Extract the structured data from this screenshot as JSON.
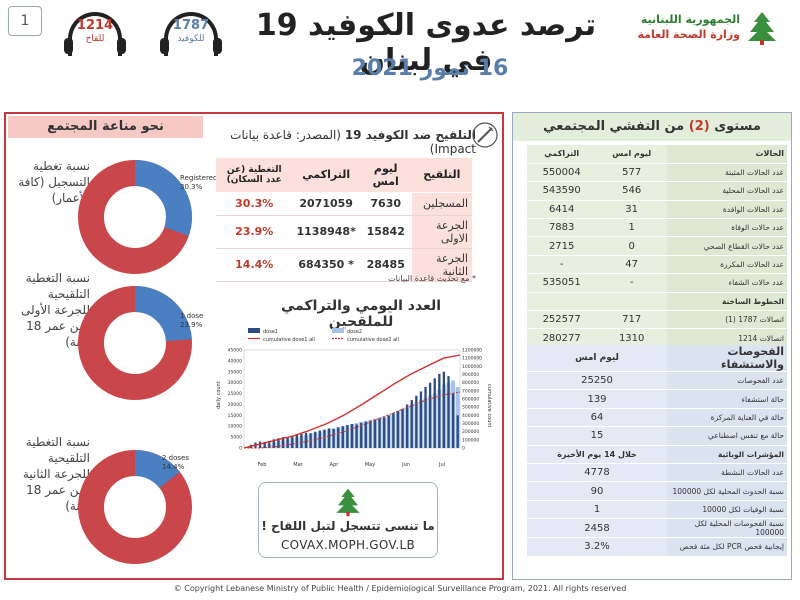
{
  "page_number": "1",
  "header": {
    "title": "ترصد عدوى الكوفيد 19 في لبنان",
    "date": "16 تموز 2021",
    "ministry_line1": "الجمهورية اللبنانية",
    "ministry_line2": "وزارة الصحة العامة",
    "hotline_covid": {
      "number": "1787",
      "label": "للكوفيد"
    },
    "hotline_vaccine": {
      "number": "1214",
      "label": "للقاح"
    }
  },
  "community_immunity": {
    "title": "نحو مناعة المجتمع",
    "donuts": [
      {
        "label": "نسبة تغطية التسجيل (كافة الأعمار)",
        "caption_line1": "Registered",
        "caption_line2": "30.3%",
        "value": 0.303
      },
      {
        "label": "نسبة التغطية التلقيحية للجرعة الأولى (من عمر 18 سنة)",
        "caption_line1": "1 dose",
        "caption_line2": "23.9%",
        "value": 0.239
      },
      {
        "label": "نسبة التغطية التلقيحية للجرعة الثانية (من عمر 18 سنة)",
        "caption_line1": "2 doses",
        "caption_line2": "14.4%",
        "value": 0.144
      }
    ],
    "colors": {
      "filled": "#4a7fc1",
      "remaining": "#c9474a"
    }
  },
  "vaccination": {
    "title_bold": "التلقيح ضد الكوفيد 19",
    "title_rest": "(المصدر: قاعدة بيانات Impact)",
    "columns": [
      "التلقيح",
      "ليوم امس",
      "التراكمي",
      "التغطية (عن عدد السكان)"
    ],
    "rows": [
      {
        "label": "المسجلين",
        "yesterday": "7630",
        "cumulative": "2071059",
        "coverage": "30.3%"
      },
      {
        "label": "الجرعة الاولى",
        "yesterday": "15842",
        "cumulative": "*1138948",
        "coverage": "23.9%"
      },
      {
        "label": "الجرعة الثانية",
        "yesterday": "28485",
        "cumulative": "* 684350",
        "coverage": "14.4%"
      }
    ],
    "note": "* مع تحديث قاعدة البيانات",
    "chart_title": "العدد اليومي والتراكمي للملقحين"
  },
  "chart_data": {
    "type": "bar",
    "legend": [
      "dose1",
      "dose2",
      "cumulative dose1 all",
      "cumulative dose2 all"
    ],
    "ylabel": "daily count",
    "y2label": "cumulative count",
    "x_months": [
      "Feb",
      "Mar",
      "Apr",
      "May",
      "Jun",
      "Jul"
    ],
    "y_ticks": [
      "0",
      "5000",
      "10000",
      "15000",
      "20000",
      "25000",
      "30000",
      "35000",
      "40000",
      "45000"
    ],
    "y2_ticks": [
      "0",
      "100000",
      "200000",
      "300000",
      "400000",
      "500000",
      "600000",
      "700000",
      "800000",
      "900000",
      "1000000",
      "1100000",
      "1200000"
    ],
    "ylim": [
      0,
      45000
    ],
    "y2lim": [
      0,
      1200000
    ],
    "dose1": [
      500,
      1500,
      2500,
      3000,
      2800,
      3200,
      4000,
      4500,
      5000,
      4800,
      5500,
      6000,
      6500,
      7000,
      6800,
      7500,
      8000,
      8500,
      9000,
      8800,
      9500,
      10000,
      10500,
      11000,
      10800,
      11500,
      12000,
      12500,
      13000,
      13500,
      14000,
      15000,
      16000,
      17000,
      18000,
      20000,
      22000,
      24000,
      26000,
      28000,
      30000,
      32000,
      34000,
      35000,
      33000,
      25000,
      15000
    ],
    "dose2": [
      0,
      0,
      0,
      0,
      500,
      1500,
      2500,
      3000,
      3500,
      4000,
      4500,
      5000,
      5500,
      6000,
      6500,
      7000,
      7500,
      8000,
      8500,
      9000,
      9500,
      10000,
      10500,
      11000,
      11500,
      12000,
      12500,
      13000,
      13500,
      14000,
      14500,
      15000,
      16000,
      17000,
      18000,
      19000,
      20000,
      21000,
      22000,
      23000,
      24000,
      25000,
      27000,
      29000,
      30000,
      31000,
      28000
    ],
    "cum_dose1": [
      0,
      50000,
      100000,
      150000,
      220000,
      300000,
      400000,
      520000,
      650000,
      780000,
      900000,
      1000000,
      1100000,
      1138948
    ],
    "cum_dose2": [
      0,
      0,
      20000,
      50000,
      90000,
      140000,
      200000,
      270000,
      350000,
      430000,
      510000,
      590000,
      650000,
      684350
    ],
    "colors": {
      "dose1": "#2f4c80",
      "dose2": "#a8c2e6",
      "cum1": "#d0312d",
      "cum2": "#d0312d"
    }
  },
  "covax": {
    "message": "ما تنسى تتسجل لتبل اللقاح !",
    "url": "COVAX.MOPH.GOV.LB"
  },
  "community_spread": {
    "title_pre": "مستوى",
    "level": "(2)",
    "title_post": "من التفشي المجتمعي",
    "cases_header": {
      "label": "الحالات",
      "yesterday": "ليوم امس",
      "cumulative": "التراكمي"
    },
    "cases": [
      {
        "label": "عدد الحالات المثبتة",
        "yesterday": "577",
        "cumulative": "550004"
      },
      {
        "label": "عدد الحالات المحلية",
        "yesterday": "546",
        "cumulative": "543590"
      },
      {
        "label": "عدد الحالات الوافدة",
        "yesterday": "31",
        "cumulative": "6414"
      },
      {
        "label": "عدد حالات الوفاة",
        "yesterday": "1",
        "cumulative": "7883"
      },
      {
        "label": "عدد حالات القطاع الصحي",
        "yesterday": "0",
        "cumulative": "2715"
      },
      {
        "label": "عدد الحالات المكررة",
        "yesterday": "47",
        "cumulative": "-"
      },
      {
        "label": "عدد حالات الشفاء",
        "yesterday": "-",
        "cumulative": "535051"
      }
    ],
    "hotlines_header": "الخطوط الساخنة",
    "hotlines": [
      {
        "label": "اتصالات 1787 (1)",
        "yesterday": "717",
        "cumulative": "252577"
      },
      {
        "label": "اتصالات 1214",
        "yesterday": "1310",
        "cumulative": "280277"
      }
    ],
    "tests_header": "الفحوصات والاستشفاء",
    "tests_sub": "ليوم امس",
    "tests": [
      {
        "label": "عدد الفحوصات",
        "value": "25250"
      },
      {
        "label": "حالة استشفاء",
        "value": "139"
      },
      {
        "label": "حالة في العناية المركزة",
        "value": "64"
      },
      {
        "label": "حالة مع تنفس اصطناعي",
        "value": "15"
      }
    ],
    "epi_header": "المؤشرات الوبائية",
    "epi_sub": "خلال 14 يوم الأخيرة",
    "epi": [
      {
        "label": "عدد الحالات النشطة",
        "value": "4778"
      },
      {
        "label": "نسبة الحدوث المحلية لكل 100000",
        "value": "90"
      },
      {
        "label": "نسبة الوفيات لكل 10000",
        "value": "1"
      },
      {
        "label": "نسبة الفحوصات المحلية لكل 100000",
        "value": "2458"
      },
      {
        "label": "إيجابية فحص PCR لكل مئة فحص",
        "value": "3.2%"
      }
    ]
  },
  "footer": "© Copyright Lebanese Ministry of Public Health / Epidemiological Surveillance Program, 2021. All rights reserved"
}
